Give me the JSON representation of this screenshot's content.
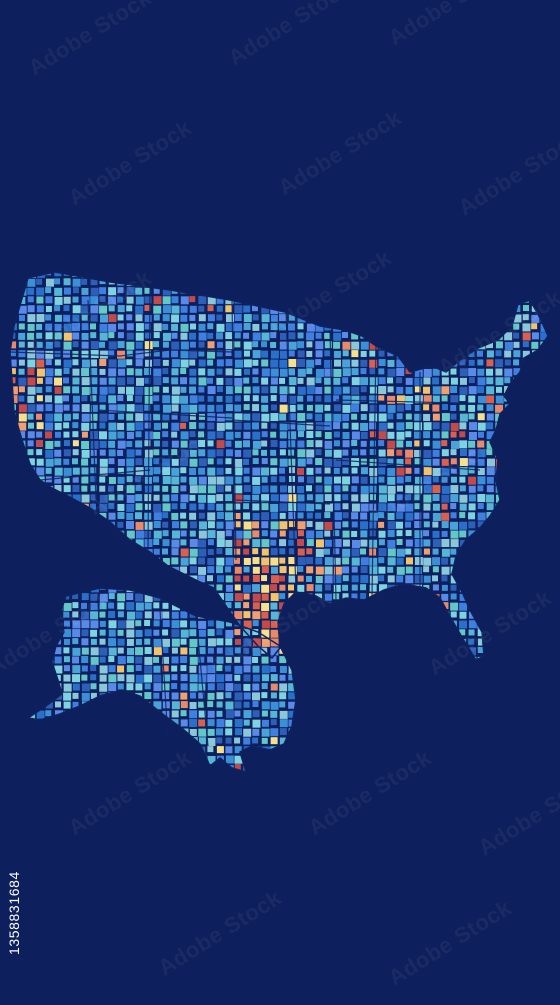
{
  "map": {
    "background_color": "#0d1f5c",
    "tile_palette": [
      "#2a6fc9",
      "#3b8fd6",
      "#4aa3d8",
      "#56b6d6",
      "#63c7c8",
      "#3f7fe0",
      "#5a8ae8",
      "#2e5fb8",
      "#7dd3e0",
      "#89c7d9"
    ],
    "hotspot_colors": [
      "#e88a6a",
      "#f0a070",
      "#d9604f",
      "#f2c36b",
      "#c24a4a",
      "#f7e08a"
    ],
    "state_border_color": "#0e2360",
    "regions": [
      {
        "name": "contiguous-us",
        "style": "mosaic"
      },
      {
        "name": "alaska",
        "style": "mosaic"
      }
    ]
  },
  "stock_id": "1358831684",
  "watermark": {
    "text": "Adobe Stock",
    "color": "#ffffff"
  }
}
